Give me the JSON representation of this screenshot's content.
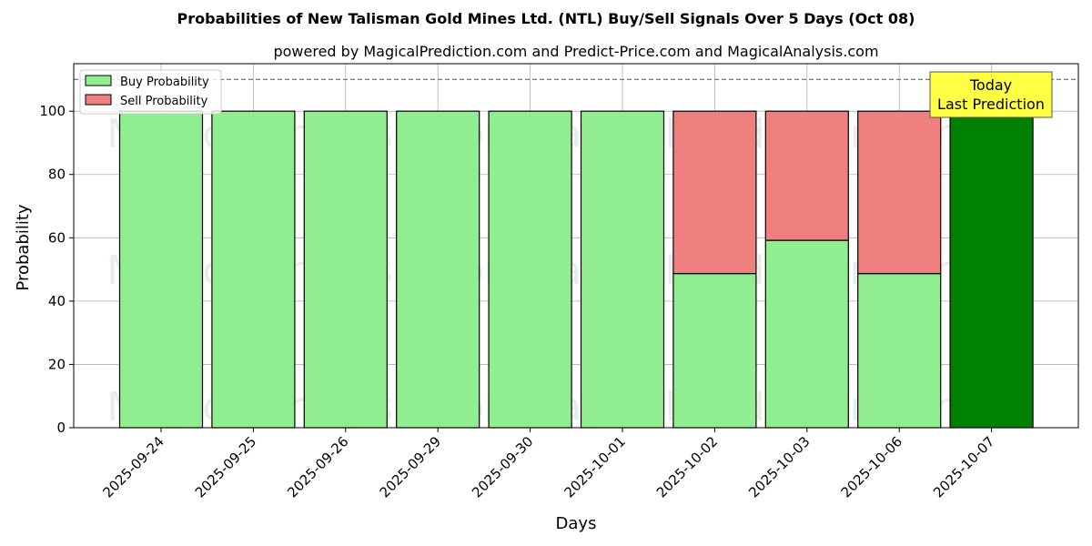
{
  "title": "Probabilities of New Talisman Gold Mines Ltd. (NTL) Buy/Sell Signals Over 5 Days (Oct 08)",
  "subtitle": "powered by MagicalPrediction.com and Predict-Price.com and MagicalAnalysis.com",
  "watermarks": [
    "MagicalAnalysis.com",
    "MagicalPrediction.com"
  ],
  "annotation": {
    "line1": "Today",
    "line2": "Last Prediction"
  },
  "colors": {
    "buy": "#90ee90",
    "sell": "#f08080",
    "today_buy": "#008000",
    "annotation_bg": "#ffff44"
  },
  "chart_data": {
    "type": "bar",
    "stacked": true,
    "title": "Probabilities of New Talisman Gold Mines Ltd. (NTL) Buy/Sell Signals Over 5 Days (Oct 08)",
    "xlabel": "Days",
    "ylabel": "Probability",
    "ylim": [
      0,
      115
    ],
    "yticks": [
      0,
      20,
      40,
      60,
      80,
      100
    ],
    "reference_line": 110,
    "grid": true,
    "legend_position": "top-left",
    "categories": [
      "2025-09-24",
      "2025-09-25",
      "2025-09-26",
      "2025-09-29",
      "2025-09-30",
      "2025-10-01",
      "2025-10-02",
      "2025-10-03",
      "2025-10-06",
      "2025-10-07"
    ],
    "series": [
      {
        "name": "Buy Probability",
        "values": [
          100,
          100,
          100,
          100,
          100,
          100,
          48.7,
          59.2,
          48.7,
          100
        ]
      },
      {
        "name": "Sell Probability",
        "values": [
          0,
          0,
          0,
          0,
          0,
          0,
          51.3,
          40.8,
          51.3,
          0
        ]
      }
    ]
  }
}
